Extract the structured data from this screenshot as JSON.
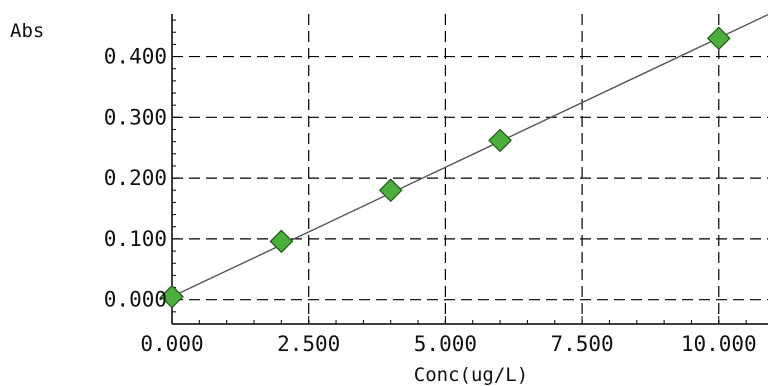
{
  "chart_data": {
    "type": "scatter",
    "title": "",
    "xlabel": "Conc(ug/L)",
    "ylabel": "Abs",
    "xlim": [
      0,
      10.9
    ],
    "ylim": [
      -0.04,
      0.47
    ],
    "x_ticks": [
      0,
      2.5,
      5,
      7.5,
      10
    ],
    "x_tick_labels": [
      "0.000",
      "2.500",
      "5.000",
      "7.500",
      "10.000"
    ],
    "y_ticks": [
      0,
      0.1,
      0.2,
      0.3,
      0.4
    ],
    "y_tick_labels": [
      "0.000",
      "0.100",
      "0.200",
      "0.300",
      "0.400"
    ],
    "grid": true,
    "grid_style": "dashed",
    "series": [
      {
        "type": "scatter",
        "marker": "diamond",
        "color": "#4cae3c",
        "points": [
          {
            "x": 0,
            "y": 0.005
          },
          {
            "x": 2,
            "y": 0.096
          },
          {
            "x": 4,
            "y": 0.18
          },
          {
            "x": 6,
            "y": 0.262
          },
          {
            "x": 10,
            "y": 0.43
          }
        ]
      }
    ],
    "fit_line": {
      "type": "line",
      "color": "#555555",
      "points": [
        {
          "x": 0,
          "y": 0.005
        },
        {
          "x": 10.9,
          "y": 0.469
        }
      ]
    }
  }
}
